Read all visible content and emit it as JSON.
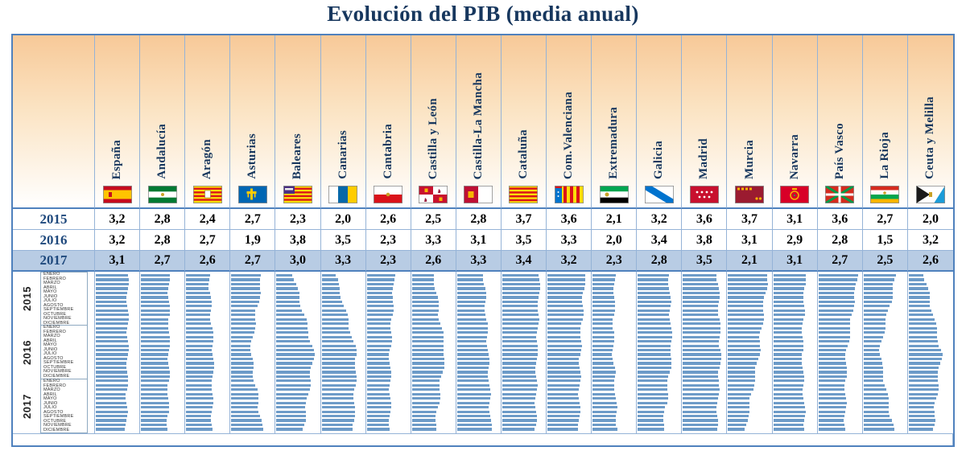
{
  "title": "Evolución del PIB (media anual)",
  "colors": {
    "title_text": "#17375E",
    "strong_border": "#4F81BD",
    "grid_line": "#95B3D7",
    "highlight_row": "#B8CCE4",
    "bar": "#6D9BC8",
    "header_gradient_top": "#F7C998",
    "year_label": "#1F497D"
  },
  "months": [
    "ENERO",
    "FEBRERO",
    "MARZO",
    "ABRIL",
    "MAYO",
    "JUNIO",
    "JULIO",
    "AGOSTO",
    "SEPTIEMBRE",
    "OCTUBRE",
    "NOVIEMBRE",
    "DICIEMBRE"
  ],
  "regions": [
    {
      "name": "España",
      "flag": "espana"
    },
    {
      "name": "Andalucía",
      "flag": "andalucia"
    },
    {
      "name": "Aragón",
      "flag": "aragon"
    },
    {
      "name": "Asturias",
      "flag": "asturias"
    },
    {
      "name": "Baleares",
      "flag": "baleares"
    },
    {
      "name": "Canarias",
      "flag": "canarias"
    },
    {
      "name": "Cantabria",
      "flag": "cantabria"
    },
    {
      "name": "Castilla y León",
      "flag": "castilla-leon"
    },
    {
      "name": "Castilla-La Mancha",
      "flag": "castilla-mancha"
    },
    {
      "name": "Cataluña",
      "flag": "cataluna"
    },
    {
      "name": "Com.Valenciana",
      "flag": "valenciana"
    },
    {
      "name": "Extremadura",
      "flag": "extremadura"
    },
    {
      "name": "Galicia",
      "flag": "galicia"
    },
    {
      "name": "Madrid",
      "flag": "madrid"
    },
    {
      "name": "Murcia",
      "flag": "murcia"
    },
    {
      "name": "Navarra",
      "flag": "navarra"
    },
    {
      "name": "País Vasco",
      "flag": "pais-vasco"
    },
    {
      "name": "La Rioja",
      "flag": "la-rioja"
    },
    {
      "name": "Ceuta y Melilla",
      "flag": "ceuta-melilla"
    }
  ],
  "table": {
    "rows": [
      {
        "label": "2015",
        "highlighted": false,
        "cells": [
          "3,2",
          "2,8",
          "2,4",
          "2,7",
          "2,3",
          "2,0",
          "2,6",
          "2,5",
          "2,8",
          "3,7",
          "3,6",
          "2,1",
          "3,2",
          "3,6",
          "3,7",
          "3,1",
          "3,6",
          "2,7",
          "2,0"
        ]
      },
      {
        "label": "2016",
        "highlighted": false,
        "cells": [
          "3,2",
          "2,8",
          "2,7",
          "1,9",
          "3,8",
          "3,5",
          "2,3",
          "3,3",
          "3,1",
          "3,5",
          "3,3",
          "2,0",
          "3,4",
          "3,8",
          "3,1",
          "2,9",
          "2,8",
          "1,5",
          "3,2"
        ]
      },
      {
        "label": "2017",
        "highlighted": true,
        "cells": [
          "3,1",
          "2,7",
          "2,6",
          "2,7",
          "3,0",
          "3,3",
          "2,3",
          "2,6",
          "3,3",
          "3,4",
          "3,2",
          "2,3",
          "2,8",
          "3,5",
          "2,1",
          "3,1",
          "2,7",
          "2,5",
          "2,6"
        ]
      }
    ]
  },
  "chart_data": {
    "type": "table",
    "title": "Evolución del PIB (media anual)",
    "categories": [
      "España",
      "Andalucía",
      "Aragón",
      "Asturias",
      "Baleares",
      "Canarias",
      "Cantabria",
      "Castilla y León",
      "Castilla-La Mancha",
      "Cataluña",
      "Com.Valenciana",
      "Extremadura",
      "Galicia",
      "Madrid",
      "Murcia",
      "Navarra",
      "País Vasco",
      "La Rioja",
      "Ceuta y Melilla"
    ],
    "series": [
      {
        "name": "2015",
        "values": [
          3.2,
          2.8,
          2.4,
          2.7,
          2.3,
          2.0,
          2.6,
          2.5,
          2.8,
          3.7,
          3.6,
          2.1,
          3.2,
          3.6,
          3.7,
          3.1,
          3.6,
          2.7,
          2.0
        ]
      },
      {
        "name": "2016",
        "values": [
          3.2,
          2.8,
          2.7,
          1.9,
          3.8,
          3.5,
          2.3,
          3.3,
          3.1,
          3.5,
          3.3,
          2.0,
          3.4,
          3.8,
          3.1,
          2.9,
          2.8,
          1.5,
          3.2
        ]
      },
      {
        "name": "2017",
        "values": [
          3.1,
          2.7,
          2.6,
          2.7,
          3.0,
          3.3,
          2.3,
          2.6,
          3.3,
          3.4,
          3.2,
          2.3,
          2.8,
          3.5,
          2.1,
          3.1,
          2.7,
          2.5,
          2.6
        ]
      }
    ],
    "highlighted_series": "2017",
    "sparklines": {
      "type": "bar",
      "orientation": "horizontal",
      "years": [
        "2015",
        "2016",
        "2017"
      ],
      "months": [
        "ENERO",
        "FEBRERO",
        "MARZO",
        "ABRIL",
        "MAYO",
        "JUNIO",
        "JULIO",
        "AGOSTO",
        "SEPTIEMBRE",
        "OCTUBRE",
        "NOVIEMBRE",
        "DICIEMBRE"
      ],
      "note": "36 monthly bars per region (2015-2017); bar lengths follow the trend implied by the annual averages above"
    }
  }
}
